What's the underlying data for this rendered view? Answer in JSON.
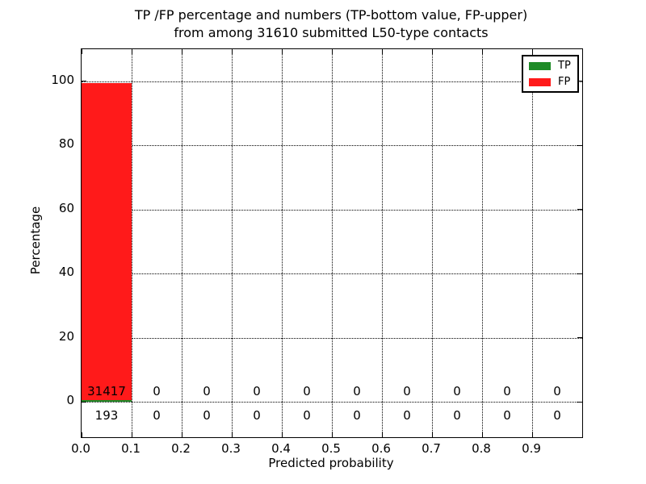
{
  "title": {
    "line1": "TP /FP percentage and numbers (TP-bottom value, FP-upper)",
    "line2": "from among 31610 submitted L50-type contacts"
  },
  "chart_data": {
    "type": "bar",
    "title": "TP /FP percentage and numbers (TP-bottom value, FP-upper)\nfrom among 31610 submitted L50-type contacts",
    "xlabel": "Predicted probability",
    "ylabel": "Percentage",
    "total_submitted": 31610,
    "xlim": [
      0.0,
      1.0
    ],
    "ylim": [
      -11,
      110
    ],
    "xtick_values": [
      0.0,
      0.1,
      0.2,
      0.3,
      0.4,
      0.5,
      0.6,
      0.7,
      0.8,
      0.9
    ],
    "xtick_labels": [
      "0.0",
      "0.1",
      "0.2",
      "0.3",
      "0.4",
      "0.5",
      "0.6",
      "0.7",
      "0.8",
      "0.9"
    ],
    "ytick_values": [
      0,
      20,
      40,
      60,
      80,
      100
    ],
    "ytick_labels": [
      "0",
      "20",
      "40",
      "60",
      "80",
      "100"
    ],
    "bin_width": 0.1,
    "bin_starts": [
      0.0,
      0.1,
      0.2,
      0.3,
      0.4,
      0.5,
      0.6,
      0.7,
      0.8,
      0.9
    ],
    "grid": "dotted",
    "series": [
      {
        "name": "TP",
        "color": "#1e8b27",
        "counts": [
          193,
          0,
          0,
          0,
          0,
          0,
          0,
          0,
          0,
          0
        ],
        "percent": [
          0.61,
          0,
          0,
          0,
          0,
          0,
          0,
          0,
          0,
          0
        ]
      },
      {
        "name": "FP",
        "color": "#ff1a1a",
        "counts": [
          31417,
          0,
          0,
          0,
          0,
          0,
          0,
          0,
          0,
          0
        ],
        "percent": [
          99.39,
          0,
          0,
          0,
          0,
          0,
          0,
          0,
          0,
          0
        ]
      }
    ],
    "legend": {
      "position": "upper right",
      "entries": [
        "TP",
        "FP"
      ]
    }
  }
}
